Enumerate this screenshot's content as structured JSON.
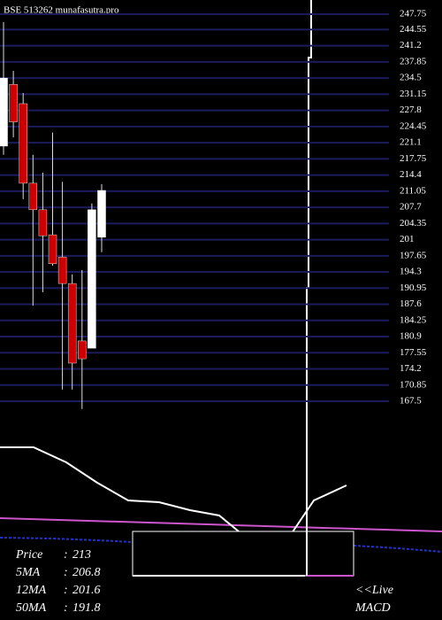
{
  "chart_data": {
    "type": "candlestick",
    "title": "BSE 513262 munafasutra.pro",
    "series": {
      "open": [
        220.4,
        233.2,
        229.2,
        212.7,
        207.2,
        202.0,
        197.4,
        191.9,
        180.0,
        178.5,
        201.5
      ],
      "high": [
        246.1,
        236.0,
        231.4,
        218.6,
        214.9,
        223.2,
        213.0,
        193.8,
        194.7,
        208.5,
        212.5
      ],
      "low": [
        218.6,
        222.2,
        209.4,
        187.3,
        190.1,
        195.6,
        169.9,
        169.9,
        165.9,
        178.5,
        198.4
      ],
      "close": [
        234.5,
        225.4,
        212.7,
        207.2,
        201.8,
        196.0,
        191.9,
        175.4,
        176.3,
        207.2,
        211.2
      ]
    },
    "up_color": "#ffffff",
    "down_color": "#cc0000",
    "wick_color": "#dddddd",
    "ylim": [
      167.5,
      247.75
    ],
    "yticks": [
      247.75,
      244.55,
      241.2,
      237.85,
      234.5,
      231.15,
      227.8,
      224.45,
      221.1,
      217.75,
      214.4,
      211.05,
      207.7,
      204.35,
      201,
      197.65,
      194.3,
      190.95,
      187.6,
      184.25,
      180.9,
      177.55,
      174.2,
      170.85,
      167.5
    ],
    "grid": true,
    "grid_color": "#1c1c5c",
    "info": [
      {
        "label": "Price",
        "value": 213
      },
      {
        "label": "5MA",
        "value": 206.8
      },
      {
        "label": "12MA",
        "value": 201.6
      },
      {
        "label": "50MA",
        "value": 191.8
      }
    ],
    "macd_label": [
      "<<Live",
      "MACD"
    ]
  }
}
